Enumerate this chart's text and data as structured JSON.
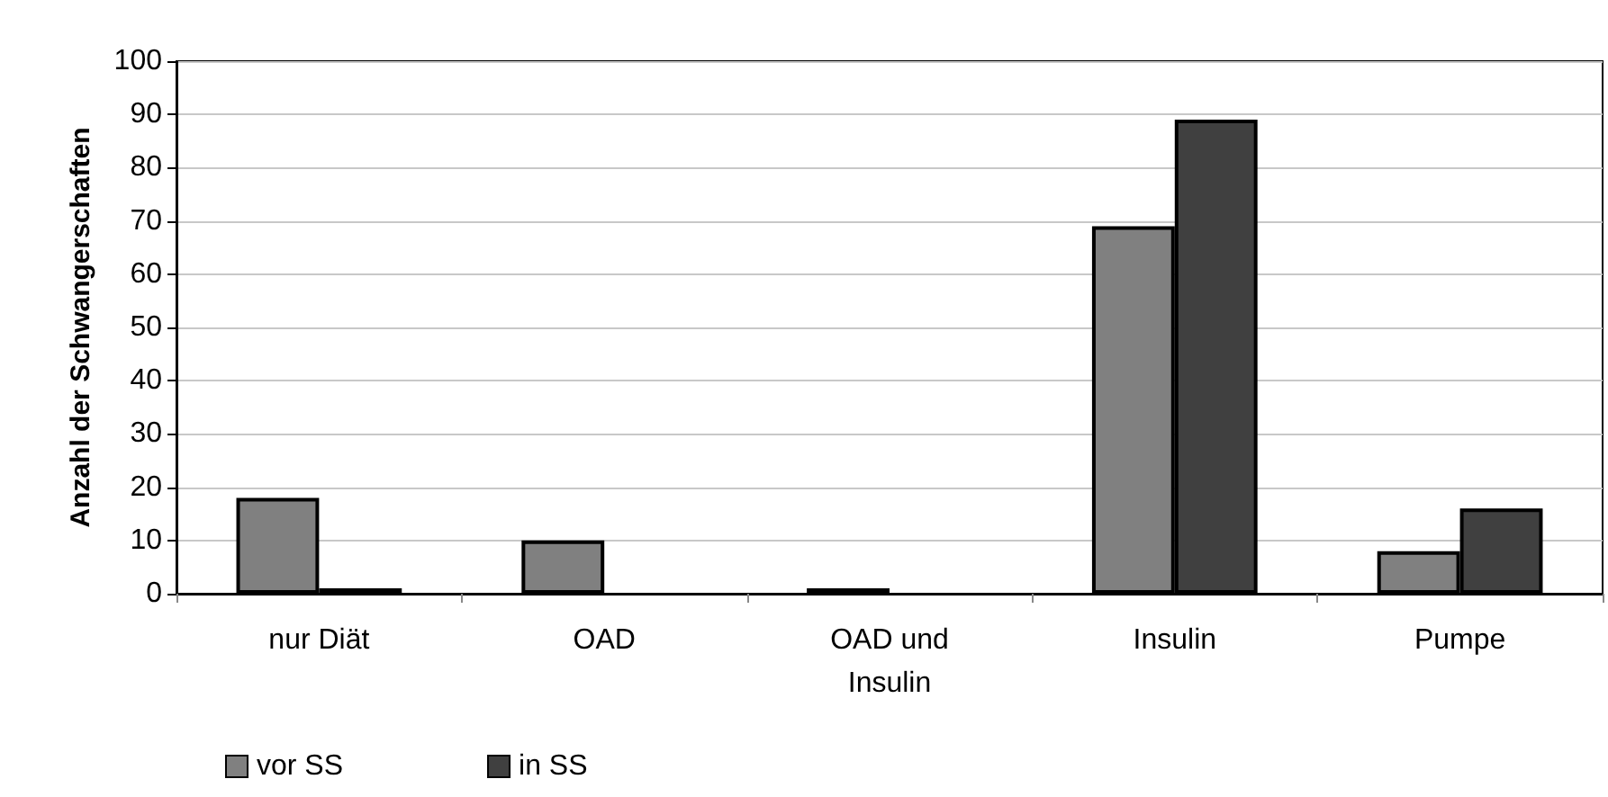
{
  "chart_data": {
    "type": "bar",
    "ylabel": "Anzahl der Schwangerschaften",
    "categories": [
      "nur Diät",
      "OAD",
      "OAD und\nInsulin",
      "Insulin",
      "Pumpe"
    ],
    "series": [
      {
        "name": "vor SS",
        "color": "#808080",
        "values": [
          18,
          10,
          1,
          69,
          8
        ]
      },
      {
        "name": "in SS",
        "color": "#404040",
        "values": [
          1,
          0,
          0,
          89,
          16
        ]
      }
    ],
    "ylim": [
      0,
      100
    ],
    "yticks": [
      0,
      10,
      20,
      30,
      40,
      50,
      60,
      70,
      80,
      90,
      100
    ],
    "grid": "y",
    "legend": "bottom left"
  }
}
